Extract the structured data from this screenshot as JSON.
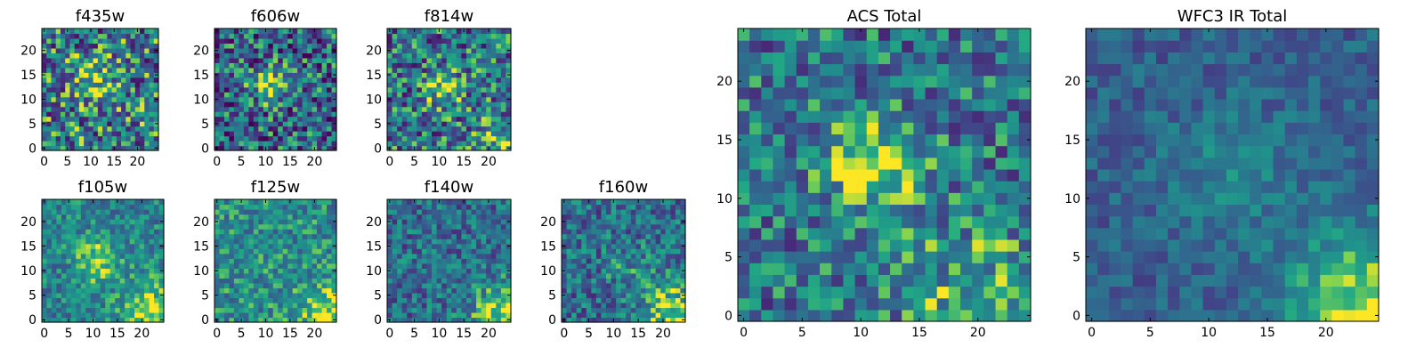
{
  "chart_data": [
    {
      "type": "heatmap",
      "title": "f435w",
      "xticks": [
        "0",
        "5",
        "10",
        "15",
        "20"
      ],
      "yticks": [
        "0",
        "5",
        "10",
        "15",
        "20"
      ],
      "xlim": [
        -0.5,
        24.5
      ],
      "ylim": [
        -0.5,
        24.5
      ],
      "colormap": "viridis",
      "pattern": {
        "seed": 11,
        "noise": 0.46,
        "base": 0.52,
        "blobs": [
          [
            11,
            14,
            3.0,
            0.35
          ]
        ]
      }
    },
    {
      "type": "heatmap",
      "title": "f606w",
      "xticks": [
        "0",
        "5",
        "10",
        "15",
        "20"
      ],
      "yticks": [
        "0",
        "5",
        "10",
        "15",
        "20"
      ],
      "xlim": [
        -0.5,
        24.5
      ],
      "ylim": [
        -0.5,
        24.5
      ],
      "colormap": "viridis",
      "pattern": {
        "seed": 23,
        "noise": 0.44,
        "base": 0.42,
        "blobs": [
          [
            11,
            13,
            2.5,
            0.5
          ]
        ]
      }
    },
    {
      "type": "heatmap",
      "title": "f814w",
      "xticks": [
        "0",
        "5",
        "10",
        "15",
        "20"
      ],
      "yticks": [
        "0",
        "5",
        "10",
        "15",
        "20"
      ],
      "xlim": [
        -0.5,
        24.5
      ],
      "ylim": [
        -0.5,
        24.5
      ],
      "colormap": "viridis",
      "pattern": {
        "seed": 37,
        "noise": 0.42,
        "base": 0.48,
        "blobs": [
          [
            11,
            12,
            2.6,
            0.35
          ],
          [
            24,
            0,
            4.0,
            0.4
          ]
        ]
      }
    },
    {
      "type": "heatmap",
      "title": "f105w",
      "xticks": [
        "0",
        "5",
        "10",
        "15",
        "20"
      ],
      "yticks": [
        "0",
        "5",
        "10",
        "15",
        "20"
      ],
      "xlim": [
        -0.5,
        24.5
      ],
      "ylim": [
        -0.5,
        24.5
      ],
      "colormap": "viridis",
      "pattern": {
        "seed": 41,
        "noise": 0.24,
        "base": 0.55,
        "blobs": [
          [
            11,
            12,
            3.2,
            0.35
          ],
          [
            23,
            1,
            4.5,
            0.45
          ]
        ]
      }
    },
    {
      "type": "heatmap",
      "title": "f125w",
      "xticks": [
        "0",
        "5",
        "10",
        "15",
        "20"
      ],
      "yticks": [
        "0",
        "5",
        "10",
        "15",
        "20"
      ],
      "xlim": [
        -0.5,
        24.5
      ],
      "ylim": [
        -0.5,
        24.5
      ],
      "colormap": "viridis",
      "pattern": {
        "seed": 53,
        "noise": 0.26,
        "base": 0.6,
        "blobs": [
          [
            23,
            1,
            4.0,
            0.4
          ]
        ]
      }
    },
    {
      "type": "heatmap",
      "title": "f140w",
      "xticks": [
        "0",
        "5",
        "10",
        "15",
        "20"
      ],
      "yticks": [
        "0",
        "5",
        "10",
        "15",
        "20"
      ],
      "xlim": [
        -0.5,
        24.5
      ],
      "ylim": [
        -0.5,
        24.5
      ],
      "colormap": "viridis",
      "pattern": {
        "seed": 67,
        "noise": 0.28,
        "base": 0.45,
        "blobs": [
          [
            23,
            1,
            4.5,
            0.5
          ]
        ]
      }
    },
    {
      "type": "heatmap",
      "title": "f160w",
      "xticks": [
        "0",
        "5",
        "10",
        "15",
        "20"
      ],
      "yticks": [
        "0",
        "5",
        "10",
        "15",
        "20"
      ],
      "xlim": [
        -0.5,
        24.5
      ],
      "ylim": [
        -0.5,
        24.5
      ],
      "colormap": "viridis",
      "pattern": {
        "seed": 79,
        "noise": 0.3,
        "base": 0.45,
        "blobs": [
          [
            13,
            11,
            3.5,
            0.15
          ],
          [
            23,
            1,
            4.5,
            0.5
          ]
        ]
      }
    },
    {
      "type": "heatmap",
      "title": "ACS Total",
      "xticks": [
        "0",
        "5",
        "10",
        "15",
        "20"
      ],
      "yticks": [
        "0",
        "5",
        "10",
        "15",
        "20"
      ],
      "xlim": [
        -0.5,
        24.5
      ],
      "ylim": [
        -0.5,
        24.5
      ],
      "colormap": "viridis",
      "pattern": {
        "seed": 97,
        "noise": 0.34,
        "base": 0.48,
        "blobs": [
          [
            11,
            13,
            2.8,
            0.5
          ],
          [
            20,
            1,
            5.0,
            0.25
          ]
        ]
      }
    },
    {
      "type": "heatmap",
      "title": "WFC3 IR Total",
      "xticks": [
        "0",
        "5",
        "10",
        "15",
        "20"
      ],
      "yticks": [
        "0",
        "5",
        "10",
        "15",
        "20"
      ],
      "xlim": [
        -0.5,
        24.5
      ],
      "ylim": [
        -0.5,
        24.5
      ],
      "colormap": "viridis",
      "pattern": {
        "seed": 113,
        "noise": 0.16,
        "base": 0.38,
        "blobs": [
          [
            12,
            12,
            3.8,
            0.2
          ],
          [
            23,
            1,
            4.5,
            0.55
          ]
        ]
      }
    }
  ]
}
